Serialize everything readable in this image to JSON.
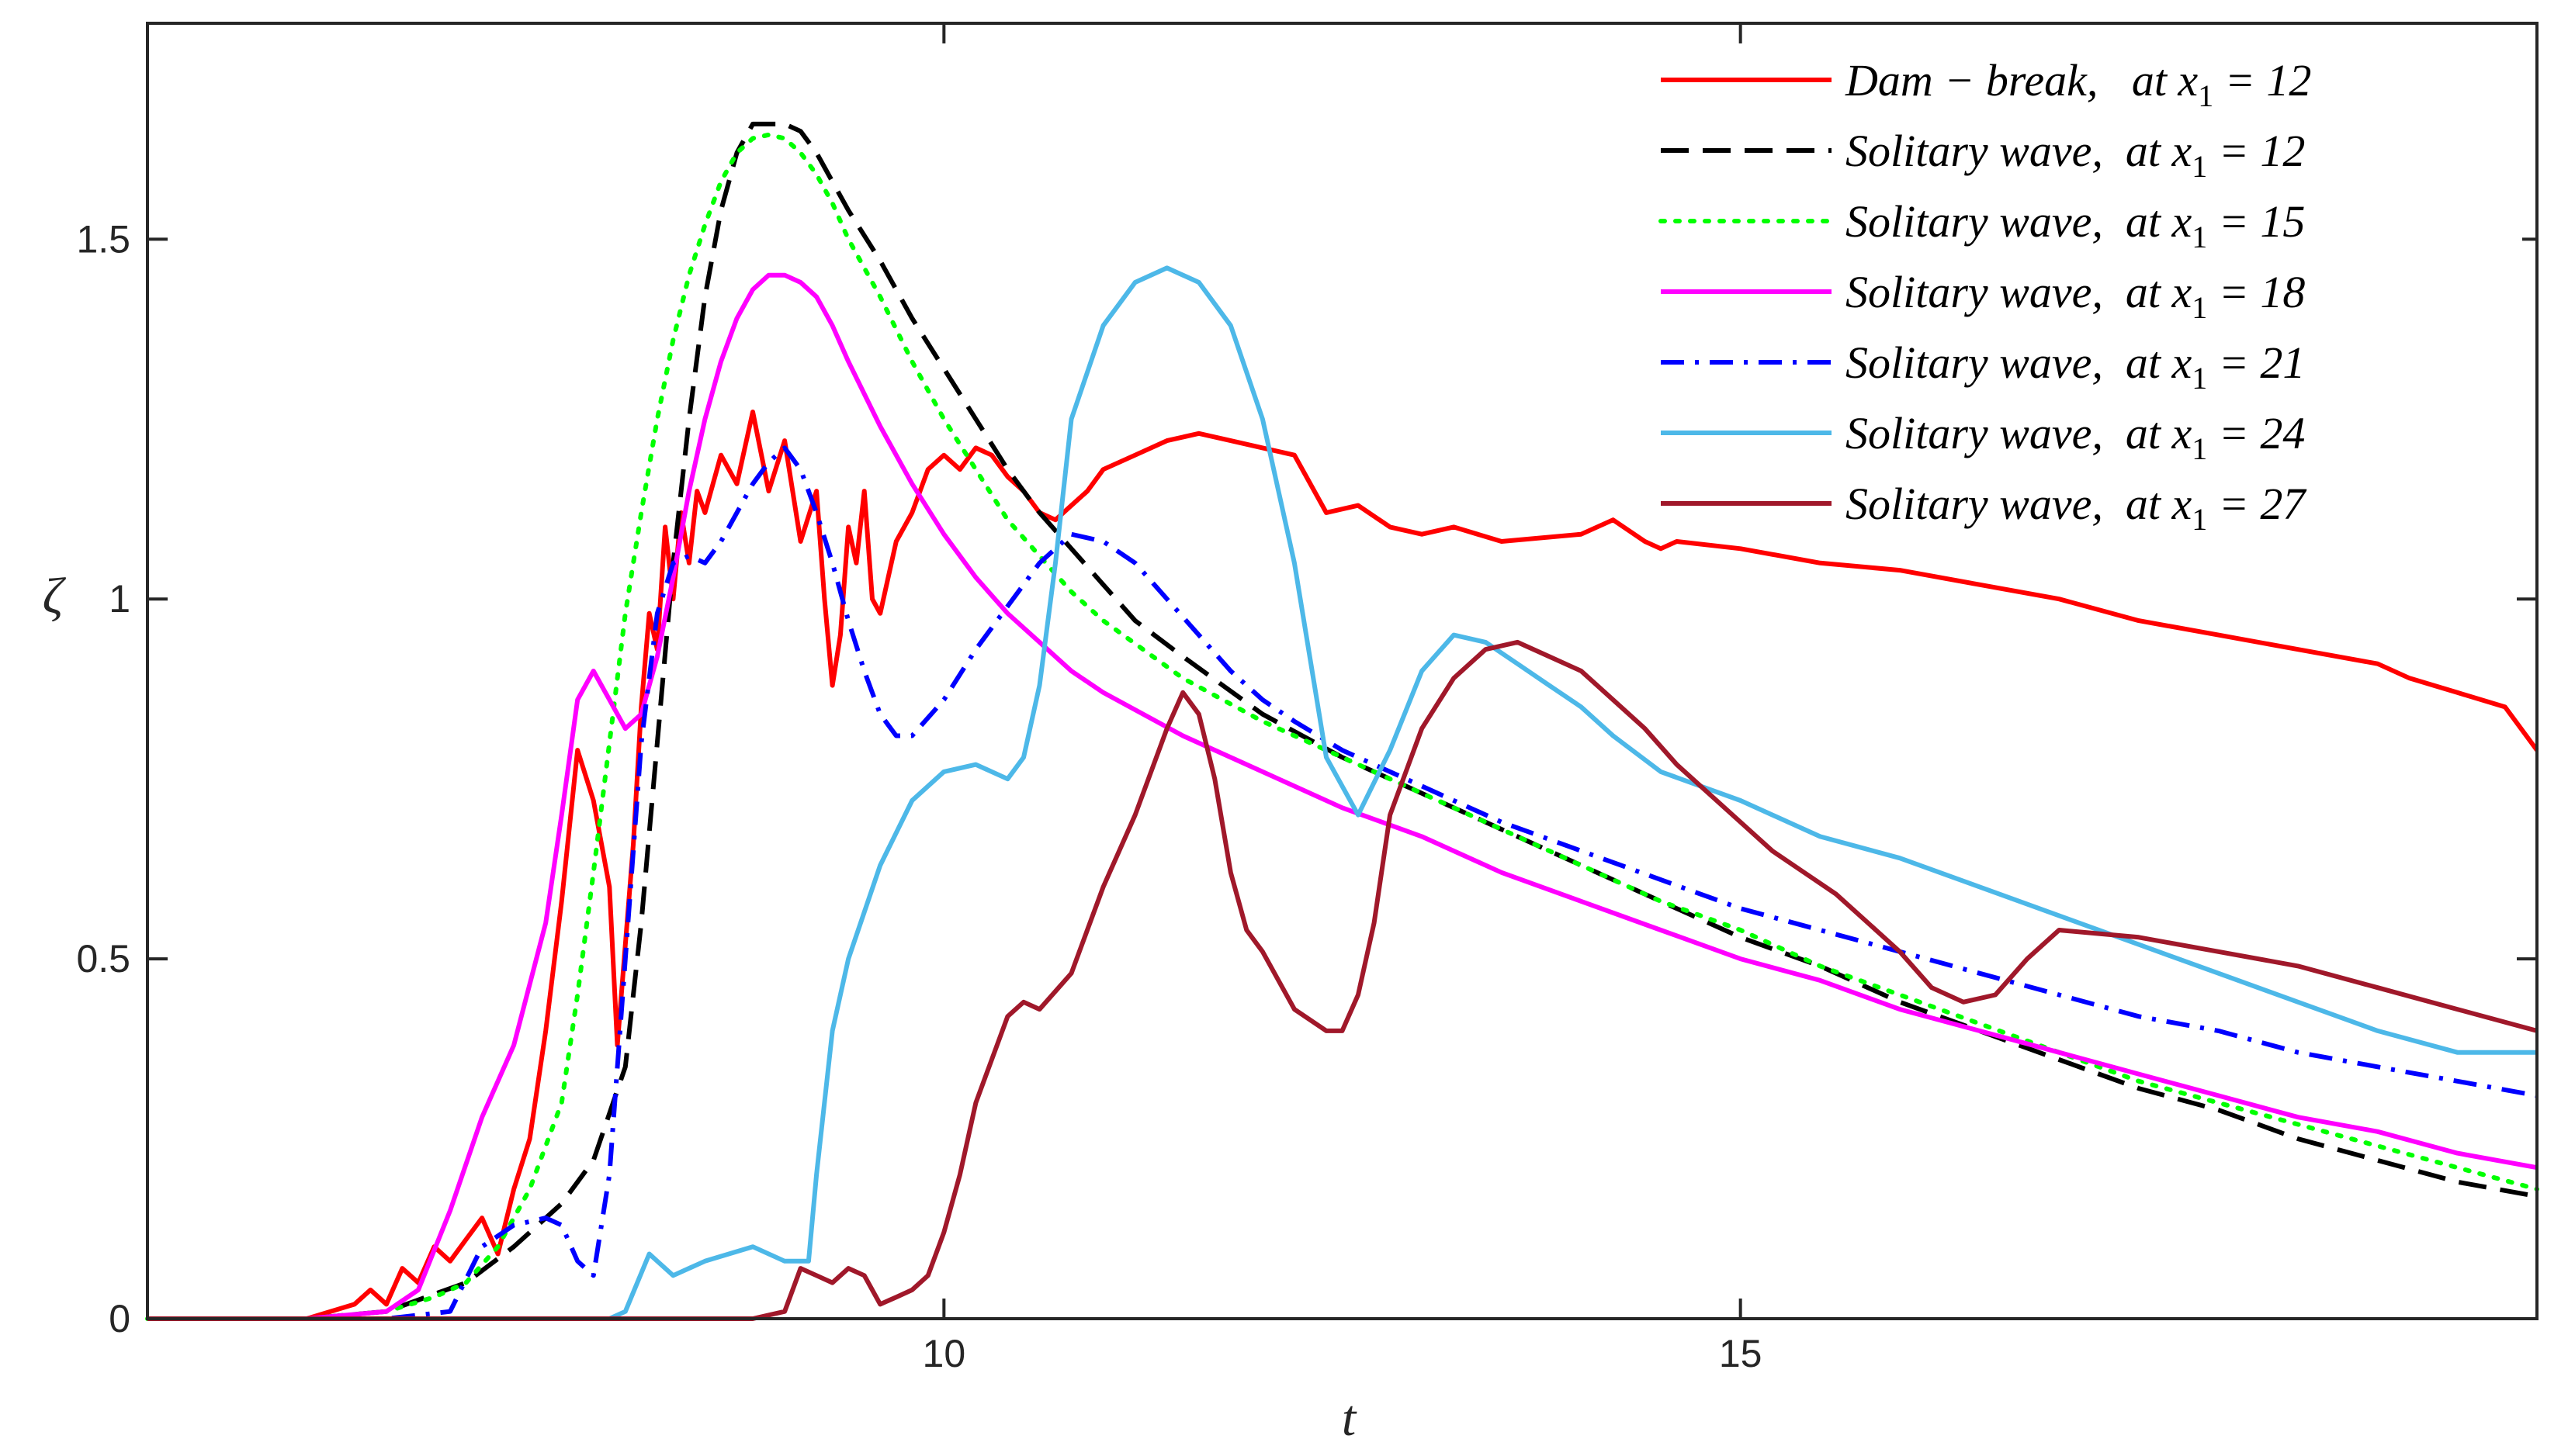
{
  "chart_data": {
    "type": "line",
    "xlabel": "t",
    "ylabel": "ζ",
    "xlim": [
      5,
      20
    ],
    "ylim": [
      0,
      1.8
    ],
    "xticks": [
      10,
      15
    ],
    "xtick_labels": [
      "10",
      "15"
    ],
    "yticks": [
      0,
      0.5,
      1,
      1.5
    ],
    "ytick_labels": [
      "0",
      "0.5",
      "1",
      "1.5"
    ],
    "grid": false,
    "legend_position": "top-right",
    "series": [
      {
        "name": "Dam − break,   at x₁ = 12",
        "label_main": "Dam − break,   at x",
        "label_sub": "1",
        "label_tail": " = 12",
        "color": "#ff0000",
        "style": "solid",
        "x": [
          5.0,
          6.0,
          6.3,
          6.4,
          6.5,
          6.6,
          6.7,
          6.8,
          6.9,
          7.0,
          7.1,
          7.2,
          7.3,
          7.4,
          7.5,
          7.6,
          7.7,
          7.8,
          7.9,
          7.95,
          8.0,
          8.05,
          8.1,
          8.15,
          8.2,
          8.25,
          8.3,
          8.35,
          8.4,
          8.45,
          8.5,
          8.6,
          8.7,
          8.8,
          8.9,
          9.0,
          9.1,
          9.2,
          9.25,
          9.3,
          9.35,
          9.4,
          9.45,
          9.5,
          9.55,
          9.6,
          9.7,
          9.8,
          9.9,
          10.0,
          10.1,
          10.2,
          10.3,
          10.4,
          10.5,
          10.6,
          10.7,
          10.8,
          10.9,
          11.0,
          11.2,
          11.4,
          11.6,
          11.8,
          12.0,
          12.2,
          12.4,
          12.6,
          12.8,
          13.0,
          13.2,
          13.5,
          14.0,
          14.2,
          14.4,
          14.5,
          14.6,
          15.0,
          15.5,
          16.0,
          16.5,
          17.0,
          17.5,
          18.0,
          18.5,
          19.0,
          19.2,
          19.5,
          19.8,
          20.0
        ],
        "y": [
          0.0,
          0.0,
          0.02,
          0.04,
          0.02,
          0.07,
          0.05,
          0.1,
          0.08,
          0.11,
          0.14,
          0.09,
          0.18,
          0.25,
          0.4,
          0.58,
          0.79,
          0.72,
          0.6,
          0.38,
          0.52,
          0.66,
          0.85,
          0.98,
          0.93,
          1.1,
          1.0,
          1.12,
          1.05,
          1.15,
          1.12,
          1.2,
          1.16,
          1.26,
          1.15,
          1.22,
          1.08,
          1.15,
          1.0,
          0.88,
          0.95,
          1.1,
          1.05,
          1.15,
          1.0,
          0.98,
          1.08,
          1.12,
          1.18,
          1.2,
          1.18,
          1.21,
          1.2,
          1.17,
          1.15,
          1.12,
          1.11,
          1.13,
          1.15,
          1.18,
          1.2,
          1.22,
          1.23,
          1.22,
          1.21,
          1.2,
          1.12,
          1.13,
          1.1,
          1.09,
          1.1,
          1.08,
          1.09,
          1.11,
          1.08,
          1.07,
          1.08,
          1.07,
          1.05,
          1.04,
          1.02,
          1.0,
          0.97,
          0.95,
          0.93,
          0.91,
          0.89,
          0.87,
          0.85,
          0.79
        ]
      },
      {
        "name": "Solitary wave,  at x₁ = 12",
        "label_main": "Solitary wave,  at x",
        "label_sub": "1",
        "label_tail": " = 12",
        "color": "#000000",
        "style": "dashed",
        "x": [
          5.0,
          6.0,
          6.5,
          7.0,
          7.3,
          7.6,
          7.8,
          8.0,
          8.1,
          8.2,
          8.3,
          8.4,
          8.5,
          8.6,
          8.7,
          8.8,
          8.9,
          9.0,
          9.1,
          9.2,
          9.3,
          9.4,
          9.6,
          9.8,
          10.0,
          10.2,
          10.4,
          10.6,
          10.8,
          11.0,
          11.2,
          11.5,
          12.0,
          12.5,
          13.0,
          13.5,
          14.0,
          14.5,
          15.0,
          15.5,
          16.0,
          16.5,
          17.0,
          17.5,
          18.0,
          18.5,
          19.0,
          19.5,
          20.0
        ],
        "y": [
          0.0,
          0.0,
          0.01,
          0.05,
          0.1,
          0.16,
          0.22,
          0.35,
          0.55,
          0.8,
          1.05,
          1.25,
          1.42,
          1.54,
          1.62,
          1.66,
          1.66,
          1.66,
          1.65,
          1.62,
          1.58,
          1.54,
          1.47,
          1.39,
          1.32,
          1.25,
          1.18,
          1.12,
          1.07,
          1.02,
          0.97,
          0.92,
          0.84,
          0.78,
          0.73,
          0.68,
          0.63,
          0.58,
          0.53,
          0.49,
          0.44,
          0.4,
          0.36,
          0.32,
          0.29,
          0.25,
          0.22,
          0.19,
          0.17
        ]
      },
      {
        "name": "Solitary wave,  at x₁ = 15",
        "label_main": "Solitary wave,  at x",
        "label_sub": "1",
        "label_tail": " = 15",
        "color": "#00ff00",
        "style": "dotted",
        "x": [
          5.0,
          6.0,
          6.5,
          6.8,
          7.0,
          7.2,
          7.4,
          7.6,
          7.7,
          7.8,
          7.9,
          8.0,
          8.1,
          8.2,
          8.3,
          8.4,
          8.5,
          8.6,
          8.7,
          8.8,
          8.9,
          9.0,
          9.1,
          9.2,
          9.3,
          9.4,
          9.6,
          9.8,
          10.0,
          10.2,
          10.4,
          10.6,
          10.8,
          11.0,
          11.5,
          12.0,
          12.5,
          13.0,
          13.5,
          14.0,
          14.5,
          15.0,
          15.5,
          16.0,
          16.5,
          17.0,
          17.5,
          18.0,
          18.5,
          19.0,
          19.5,
          20.0
        ],
        "y": [
          0.0,
          0.0,
          0.01,
          0.03,
          0.05,
          0.1,
          0.18,
          0.3,
          0.45,
          0.62,
          0.8,
          0.98,
          1.12,
          1.25,
          1.36,
          1.45,
          1.52,
          1.58,
          1.62,
          1.64,
          1.645,
          1.64,
          1.62,
          1.59,
          1.55,
          1.5,
          1.42,
          1.33,
          1.25,
          1.18,
          1.11,
          1.06,
          1.01,
          0.97,
          0.89,
          0.83,
          0.78,
          0.73,
          0.68,
          0.63,
          0.58,
          0.54,
          0.49,
          0.45,
          0.41,
          0.37,
          0.33,
          0.3,
          0.27,
          0.24,
          0.21,
          0.18
        ]
      },
      {
        "name": "Solitary wave,  at x₁ = 18",
        "label_main": "Solitary wave,  at x",
        "label_sub": "1",
        "label_tail": " = 18",
        "color": "#ff00ff",
        "style": "solid",
        "x": [
          5.0,
          6.0,
          6.5,
          6.7,
          6.9,
          7.1,
          7.3,
          7.5,
          7.6,
          7.7,
          7.8,
          7.9,
          8.0,
          8.1,
          8.2,
          8.3,
          8.4,
          8.5,
          8.6,
          8.7,
          8.8,
          8.9,
          9.0,
          9.1,
          9.2,
          9.3,
          9.4,
          9.6,
          9.8,
          10.0,
          10.2,
          10.4,
          10.6,
          10.8,
          11.0,
          11.5,
          12.0,
          12.5,
          13.0,
          13.5,
          14.0,
          14.5,
          15.0,
          15.5,
          16.0,
          16.5,
          17.0,
          17.5,
          18.0,
          18.5,
          19.0,
          19.5,
          20.0
        ],
        "y": [
          0.0,
          0.0,
          0.01,
          0.04,
          0.15,
          0.28,
          0.38,
          0.55,
          0.7,
          0.86,
          0.9,
          0.86,
          0.82,
          0.84,
          0.92,
          1.03,
          1.15,
          1.25,
          1.33,
          1.39,
          1.43,
          1.45,
          1.45,
          1.44,
          1.42,
          1.38,
          1.33,
          1.24,
          1.16,
          1.09,
          1.03,
          0.98,
          0.94,
          0.9,
          0.87,
          0.81,
          0.76,
          0.71,
          0.67,
          0.62,
          0.58,
          0.54,
          0.5,
          0.47,
          0.43,
          0.4,
          0.37,
          0.34,
          0.31,
          0.28,
          0.26,
          0.23,
          0.21
        ]
      },
      {
        "name": "Solitary wave,  at x₁ = 21",
        "label_main": "Solitary wave,  at x",
        "label_sub": "1",
        "label_tail": " = 21",
        "color": "#0000ff",
        "style": "dashdot",
        "x": [
          5.0,
          6.5,
          6.9,
          7.1,
          7.3,
          7.5,
          7.6,
          7.7,
          7.8,
          7.9,
          8.0,
          8.1,
          8.2,
          8.3,
          8.4,
          8.5,
          8.6,
          8.7,
          8.8,
          8.9,
          9.0,
          9.1,
          9.2,
          9.3,
          9.4,
          9.5,
          9.6,
          9.7,
          9.8,
          10.0,
          10.2,
          10.4,
          10.6,
          10.8,
          11.0,
          11.2,
          11.4,
          11.6,
          11.8,
          12.0,
          12.2,
          12.5,
          13.0,
          13.5,
          14.0,
          14.5,
          15.0,
          15.5,
          16.0,
          16.5,
          17.0,
          17.5,
          18.0,
          18.5,
          19.0,
          19.5,
          20.0
        ],
        "y": [
          0.0,
          0.0,
          0.01,
          0.1,
          0.13,
          0.14,
          0.13,
          0.08,
          0.06,
          0.2,
          0.5,
          0.8,
          0.98,
          1.05,
          1.06,
          1.05,
          1.08,
          1.12,
          1.16,
          1.19,
          1.21,
          1.18,
          1.12,
          1.05,
          0.97,
          0.9,
          0.84,
          0.81,
          0.81,
          0.86,
          0.93,
          0.99,
          1.05,
          1.09,
          1.08,
          1.05,
          1.0,
          0.95,
          0.9,
          0.86,
          0.83,
          0.79,
          0.74,
          0.69,
          0.65,
          0.61,
          0.57,
          0.54,
          0.51,
          0.48,
          0.45,
          0.42,
          0.4,
          0.37,
          0.35,
          0.33,
          0.31
        ]
      },
      {
        "name": "Solitary wave,  at x₁ = 24",
        "label_main": "Solitary wave,  at x",
        "label_sub": "1",
        "label_tail": " = 24",
        "color": "#4db8e8",
        "style": "solid",
        "x": [
          5.0,
          7.9,
          8.0,
          8.15,
          8.2,
          8.3,
          8.5,
          8.8,
          9.0,
          9.15,
          9.2,
          9.3,
          9.4,
          9.6,
          9.8,
          10.0,
          10.2,
          10.4,
          10.5,
          10.6,
          10.7,
          10.8,
          11.0,
          11.2,
          11.4,
          11.6,
          11.8,
          12.0,
          12.2,
          12.4,
          12.6,
          12.8,
          13.0,
          13.2,
          13.4,
          13.6,
          13.8,
          14.0,
          14.2,
          14.5,
          15.0,
          15.5,
          16.0,
          16.5,
          17.0,
          17.5,
          18.0,
          18.5,
          19.0,
          19.5,
          20.0
        ],
        "y": [
          0.0,
          0.0,
          0.01,
          0.09,
          0.08,
          0.06,
          0.08,
          0.1,
          0.08,
          0.08,
          0.2,
          0.4,
          0.5,
          0.63,
          0.72,
          0.76,
          0.77,
          0.75,
          0.78,
          0.88,
          1.05,
          1.25,
          1.38,
          1.44,
          1.46,
          1.44,
          1.38,
          1.25,
          1.05,
          0.78,
          0.7,
          0.79,
          0.9,
          0.95,
          0.94,
          0.91,
          0.88,
          0.85,
          0.81,
          0.76,
          0.72,
          0.67,
          0.64,
          0.6,
          0.56,
          0.52,
          0.48,
          0.44,
          0.4,
          0.37,
          0.37
        ]
      },
      {
        "name": "Solitary wave,  at x₁ = 27",
        "label_main": "Solitary wave,  at x",
        "label_sub": "1",
        "label_tail": " = 27",
        "color": "#a0182a",
        "style": "solid",
        "x": [
          5.0,
          8.8,
          9.0,
          9.1,
          9.2,
          9.3,
          9.4,
          9.5,
          9.6,
          9.7,
          9.8,
          9.9,
          10.0,
          10.1,
          10.2,
          10.3,
          10.4,
          10.5,
          10.6,
          10.8,
          11.0,
          11.2,
          11.4,
          11.5,
          11.6,
          11.7,
          11.8,
          11.9,
          12.0,
          12.2,
          12.4,
          12.5,
          12.6,
          12.7,
          12.8,
          13.0,
          13.2,
          13.4,
          13.6,
          13.8,
          14.0,
          14.2,
          14.4,
          14.6,
          14.8,
          15.0,
          15.2,
          15.4,
          15.6,
          15.8,
          16.0,
          16.2,
          16.4,
          16.6,
          16.8,
          17.0,
          17.5,
          18.0,
          18.5,
          19.0,
          19.5,
          20.0
        ],
        "y": [
          0.0,
          0.0,
          0.01,
          0.07,
          0.06,
          0.05,
          0.07,
          0.06,
          0.02,
          0.03,
          0.04,
          0.06,
          0.12,
          0.2,
          0.3,
          0.36,
          0.42,
          0.44,
          0.43,
          0.48,
          0.6,
          0.7,
          0.82,
          0.87,
          0.84,
          0.75,
          0.62,
          0.54,
          0.51,
          0.43,
          0.4,
          0.4,
          0.45,
          0.55,
          0.7,
          0.82,
          0.89,
          0.93,
          0.94,
          0.92,
          0.9,
          0.86,
          0.82,
          0.77,
          0.73,
          0.69,
          0.65,
          0.62,
          0.59,
          0.55,
          0.51,
          0.46,
          0.44,
          0.45,
          0.5,
          0.54,
          0.53,
          0.51,
          0.49,
          0.46,
          0.43,
          0.4
        ]
      }
    ]
  }
}
